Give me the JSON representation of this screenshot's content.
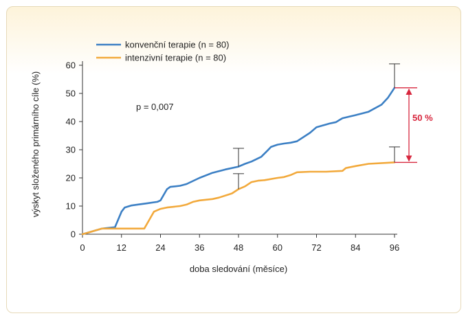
{
  "chart_data": {
    "type": "line",
    "xlabel": "doba sledování (měsíce)",
    "ylabel": "výskyt složeného primárního cíle (%)",
    "xlim": [
      0,
      96
    ],
    "ylim": [
      0,
      60
    ],
    "xticks": [
      0,
      12,
      24,
      36,
      48,
      60,
      72,
      84,
      96
    ],
    "yticks": [
      0,
      10,
      20,
      30,
      40,
      50,
      60
    ],
    "legend_position": "top-left",
    "annotation": "p = 0,007",
    "difference_label": "50 %",
    "series": [
      {
        "name": "konvenční terapie (n = 80)",
        "color": "#3b7fc4",
        "x": [
          0,
          6,
          10,
          12,
          13,
          15,
          20,
          23,
          24,
          26,
          27,
          30,
          32,
          36,
          40,
          44,
          48,
          50,
          52,
          55,
          57,
          58,
          60,
          62,
          64,
          66,
          70,
          72,
          76,
          78,
          79,
          80,
          84,
          88,
          92,
          94,
          96
        ],
        "y": [
          0,
          2,
          2.5,
          8,
          9.5,
          10.2,
          11,
          11.5,
          12,
          16,
          16.8,
          17.2,
          17.8,
          20,
          21.8,
          23,
          24,
          25,
          25.8,
          27.5,
          29.8,
          31,
          31.8,
          32.2,
          32.5,
          33,
          36,
          38,
          39.3,
          39.8,
          40.5,
          41.2,
          42.3,
          43.5,
          46,
          48.5,
          52
        ]
      },
      {
        "name": "intenzivní terapie (n = 80)",
        "color": "#f2a93b",
        "x": [
          0,
          6,
          19,
          20,
          21,
          22,
          24,
          26,
          30,
          32,
          34,
          36,
          40,
          42,
          46,
          48,
          50,
          52,
          54,
          56,
          60,
          62,
          64,
          66,
          70,
          75,
          80,
          81,
          84,
          88,
          96
        ],
        "y": [
          0,
          2,
          2,
          4,
          6,
          8,
          9,
          9.5,
          10,
          10.5,
          11.5,
          12,
          12.5,
          13,
          14.5,
          16,
          17,
          18.5,
          19,
          19.2,
          20,
          20.3,
          21,
          22,
          22.2,
          22.2,
          22.5,
          23.5,
          24.2,
          25,
          25.5
        ]
      }
    ],
    "error_bars": [
      {
        "series": "konvenční terapie (n = 80)",
        "x": 48,
        "y": 24,
        "upper": 30.5
      },
      {
        "series": "konvenční terapie (n = 80)",
        "x": 96,
        "y": 52,
        "upper": 60.5
      },
      {
        "series": "intenzivní terapie (n = 80)",
        "x": 48,
        "y": 16,
        "upper": 21.5
      },
      {
        "series": "intenzivní terapie (n = 80)",
        "x": 96,
        "y": 25.5,
        "upper": 31
      }
    ]
  }
}
